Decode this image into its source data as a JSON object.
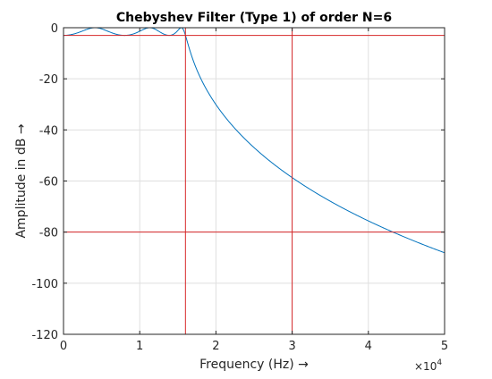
{
  "chart_data": {
    "type": "line",
    "title": "Chebyshev Filter (Type 1) of order N=6",
    "xlabel": "Frequency (Hz) →",
    "ylabel": "Amplitude in dB →",
    "x_exponent_label": "×10",
    "x_exponent_power": "4",
    "xlim": [
      0,
      50000
    ],
    "ylim": [
      -120,
      0
    ],
    "grid": true,
    "x_ticks": [
      0,
      10000,
      20000,
      30000,
      40000,
      50000
    ],
    "x_tick_labels": [
      "0",
      "1",
      "2",
      "3",
      "4",
      "5"
    ],
    "y_ticks": [
      0,
      -20,
      -40,
      -60,
      -80,
      -100,
      -120
    ],
    "y_tick_labels": [
      "0",
      "-20",
      "-40",
      "-60",
      "-80",
      "-100",
      "-120"
    ],
    "filter": {
      "order": 6,
      "passband_ripple_db": 3,
      "passband_edge_hz": 16000
    },
    "series": [
      {
        "values": "computed"
      }
    ],
    "reference_lines": {
      "horizontal": [
        -3,
        -80
      ],
      "vertical": [
        16000,
        30000
      ],
      "color": "#d62728"
    },
    "colors": {
      "series": "#0072bd",
      "reference": "#d62728",
      "grid": "#dfdfdf",
      "axes": "#262626"
    }
  }
}
